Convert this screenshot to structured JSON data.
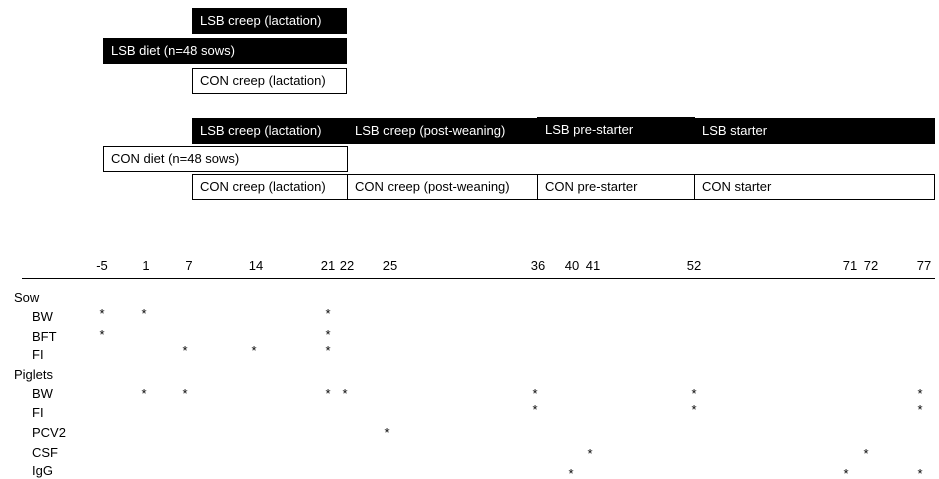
{
  "sow_diet_groups": [
    {
      "diet_label": "LSB diet (n=48 sows)",
      "creep": [
        {
          "label": "LSB creep (lactation)",
          "style": "filled"
        },
        {
          "label": "CON creep (lactation)",
          "style": "outline"
        }
      ]
    },
    {
      "diet_label": "CON diet (n=48 sows)",
      "creep_phases_lsb": [
        {
          "label": "LSB creep (lactation)"
        },
        {
          "label": "LSB creep (post-weaning)"
        },
        {
          "label": "LSB pre-starter"
        },
        {
          "label": "LSB starter"
        }
      ],
      "creep_phases_con": [
        {
          "label": "CON creep (lactation)"
        },
        {
          "label": "CON creep (post-weaning)"
        },
        {
          "label": "CON pre-starter"
        },
        {
          "label": "CON starter"
        }
      ]
    }
  ],
  "timeline": {
    "days": [
      "-5",
      "1",
      "7",
      "14",
      "21",
      "22",
      "25",
      "36",
      "40",
      "41",
      "52",
      "71",
      "72",
      "77"
    ],
    "groups": [
      {
        "label": "Sow",
        "rows": [
          {
            "label": "BW",
            "marked_days": [
              "-5",
              "1",
              "21"
            ]
          },
          {
            "label": "BFT",
            "marked_days": [
              "-5",
              "21"
            ]
          },
          {
            "label": "FI",
            "marked_days": [
              "7",
              "14",
              "21"
            ]
          }
        ]
      },
      {
        "label": "Piglets",
        "rows": [
          {
            "label": "BW",
            "marked_days": [
              "1",
              "7",
              "21",
              "22",
              "36",
              "52",
              "77"
            ]
          },
          {
            "label": "FI",
            "marked_days": [
              "36",
              "52",
              "77"
            ]
          },
          {
            "label": "PCV2",
            "marked_days": [
              "25"
            ]
          },
          {
            "label": "CSF",
            "marked_days": [
              "41",
              "72"
            ]
          },
          {
            "label": "IgG",
            "marked_days": [
              "40",
              "71",
              "77"
            ]
          }
        ]
      }
    ],
    "marker": "*"
  }
}
